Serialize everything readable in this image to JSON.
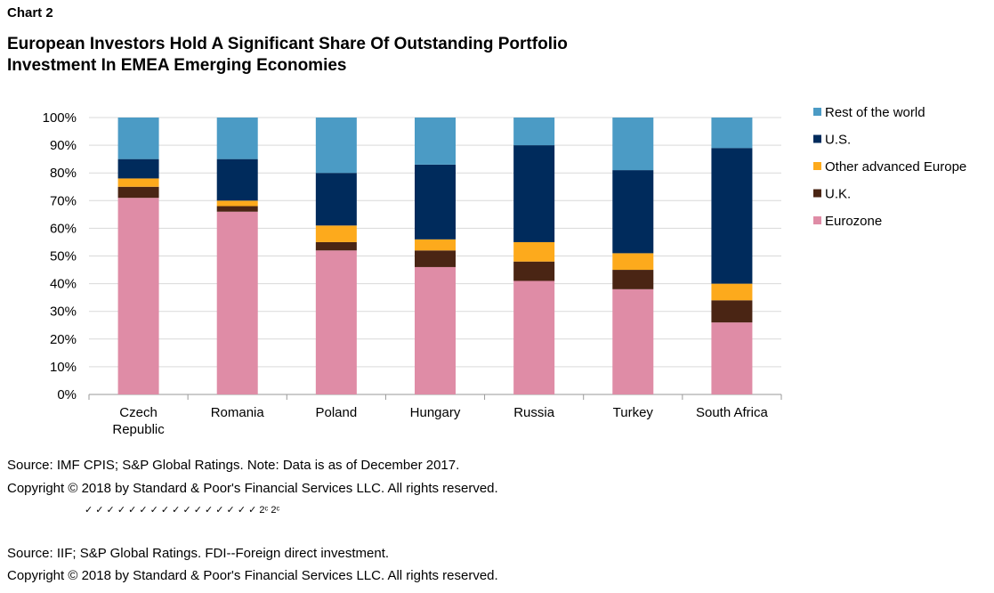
{
  "header": {
    "label": "Chart 2",
    "title_line1": "European Investors Hold A Significant Share Of Outstanding Portfolio",
    "title_line2": "Investment In EMEA Emerging Economies"
  },
  "chart_data": {
    "type": "bar",
    "stacked": true,
    "categories": [
      [
        "Czech",
        "Republic"
      ],
      [
        "Romania"
      ],
      [
        "Poland"
      ],
      [
        "Hungary"
      ],
      [
        "Russia"
      ],
      [
        "Turkey"
      ],
      [
        "South Africa"
      ]
    ],
    "series": [
      {
        "name": "Eurozone",
        "color": "#df8ca6",
        "values": [
          71,
          66,
          52,
          46,
          41,
          38,
          26
        ]
      },
      {
        "name": "U.K.",
        "color": "#4a2514",
        "values": [
          4,
          2,
          3,
          6,
          7,
          7,
          8
        ]
      },
      {
        "name": "Other advanced Europe",
        "color": "#fdaa1c",
        "values": [
          3,
          2,
          6,
          4,
          7,
          6,
          6
        ]
      },
      {
        "name": "U.S.",
        "color": "#002b5c",
        "values": [
          7,
          15,
          19,
          27,
          35,
          30,
          49
        ]
      },
      {
        "name": "Rest of the world",
        "color": "#4b9bc5",
        "values": [
          15,
          15,
          20,
          17,
          10,
          19,
          11
        ]
      }
    ],
    "yticks": [
      "0%",
      "10%",
      "20%",
      "30%",
      "40%",
      "50%",
      "60%",
      "70%",
      "80%",
      "90%",
      "100%"
    ],
    "ylim": [
      0,
      100
    ],
    "grid": true,
    "legend": "right"
  },
  "footer": {
    "source1": "Source: IMF CPIS; S&P Global Ratings. Note: Data is as of December 2017.",
    "copyright1": "Copyright © 2018 by Standard & Poor's Financial Services LLC. All rights reserved.",
    "artifact_marks": "✓ ✓ ✓ ✓ ✓ ✓ ✓ ✓ ✓ ✓ ✓ ✓ ✓ ✓ ✓ ✓ 2ᶜ 2ᶜ",
    "source2": "Source: IIF; S&P Global Ratings. FDI--Foreign direct investment.",
    "copyright2": "Copyright © 2018 by Standard & Poor's Financial Services LLC. All rights reserved."
  }
}
